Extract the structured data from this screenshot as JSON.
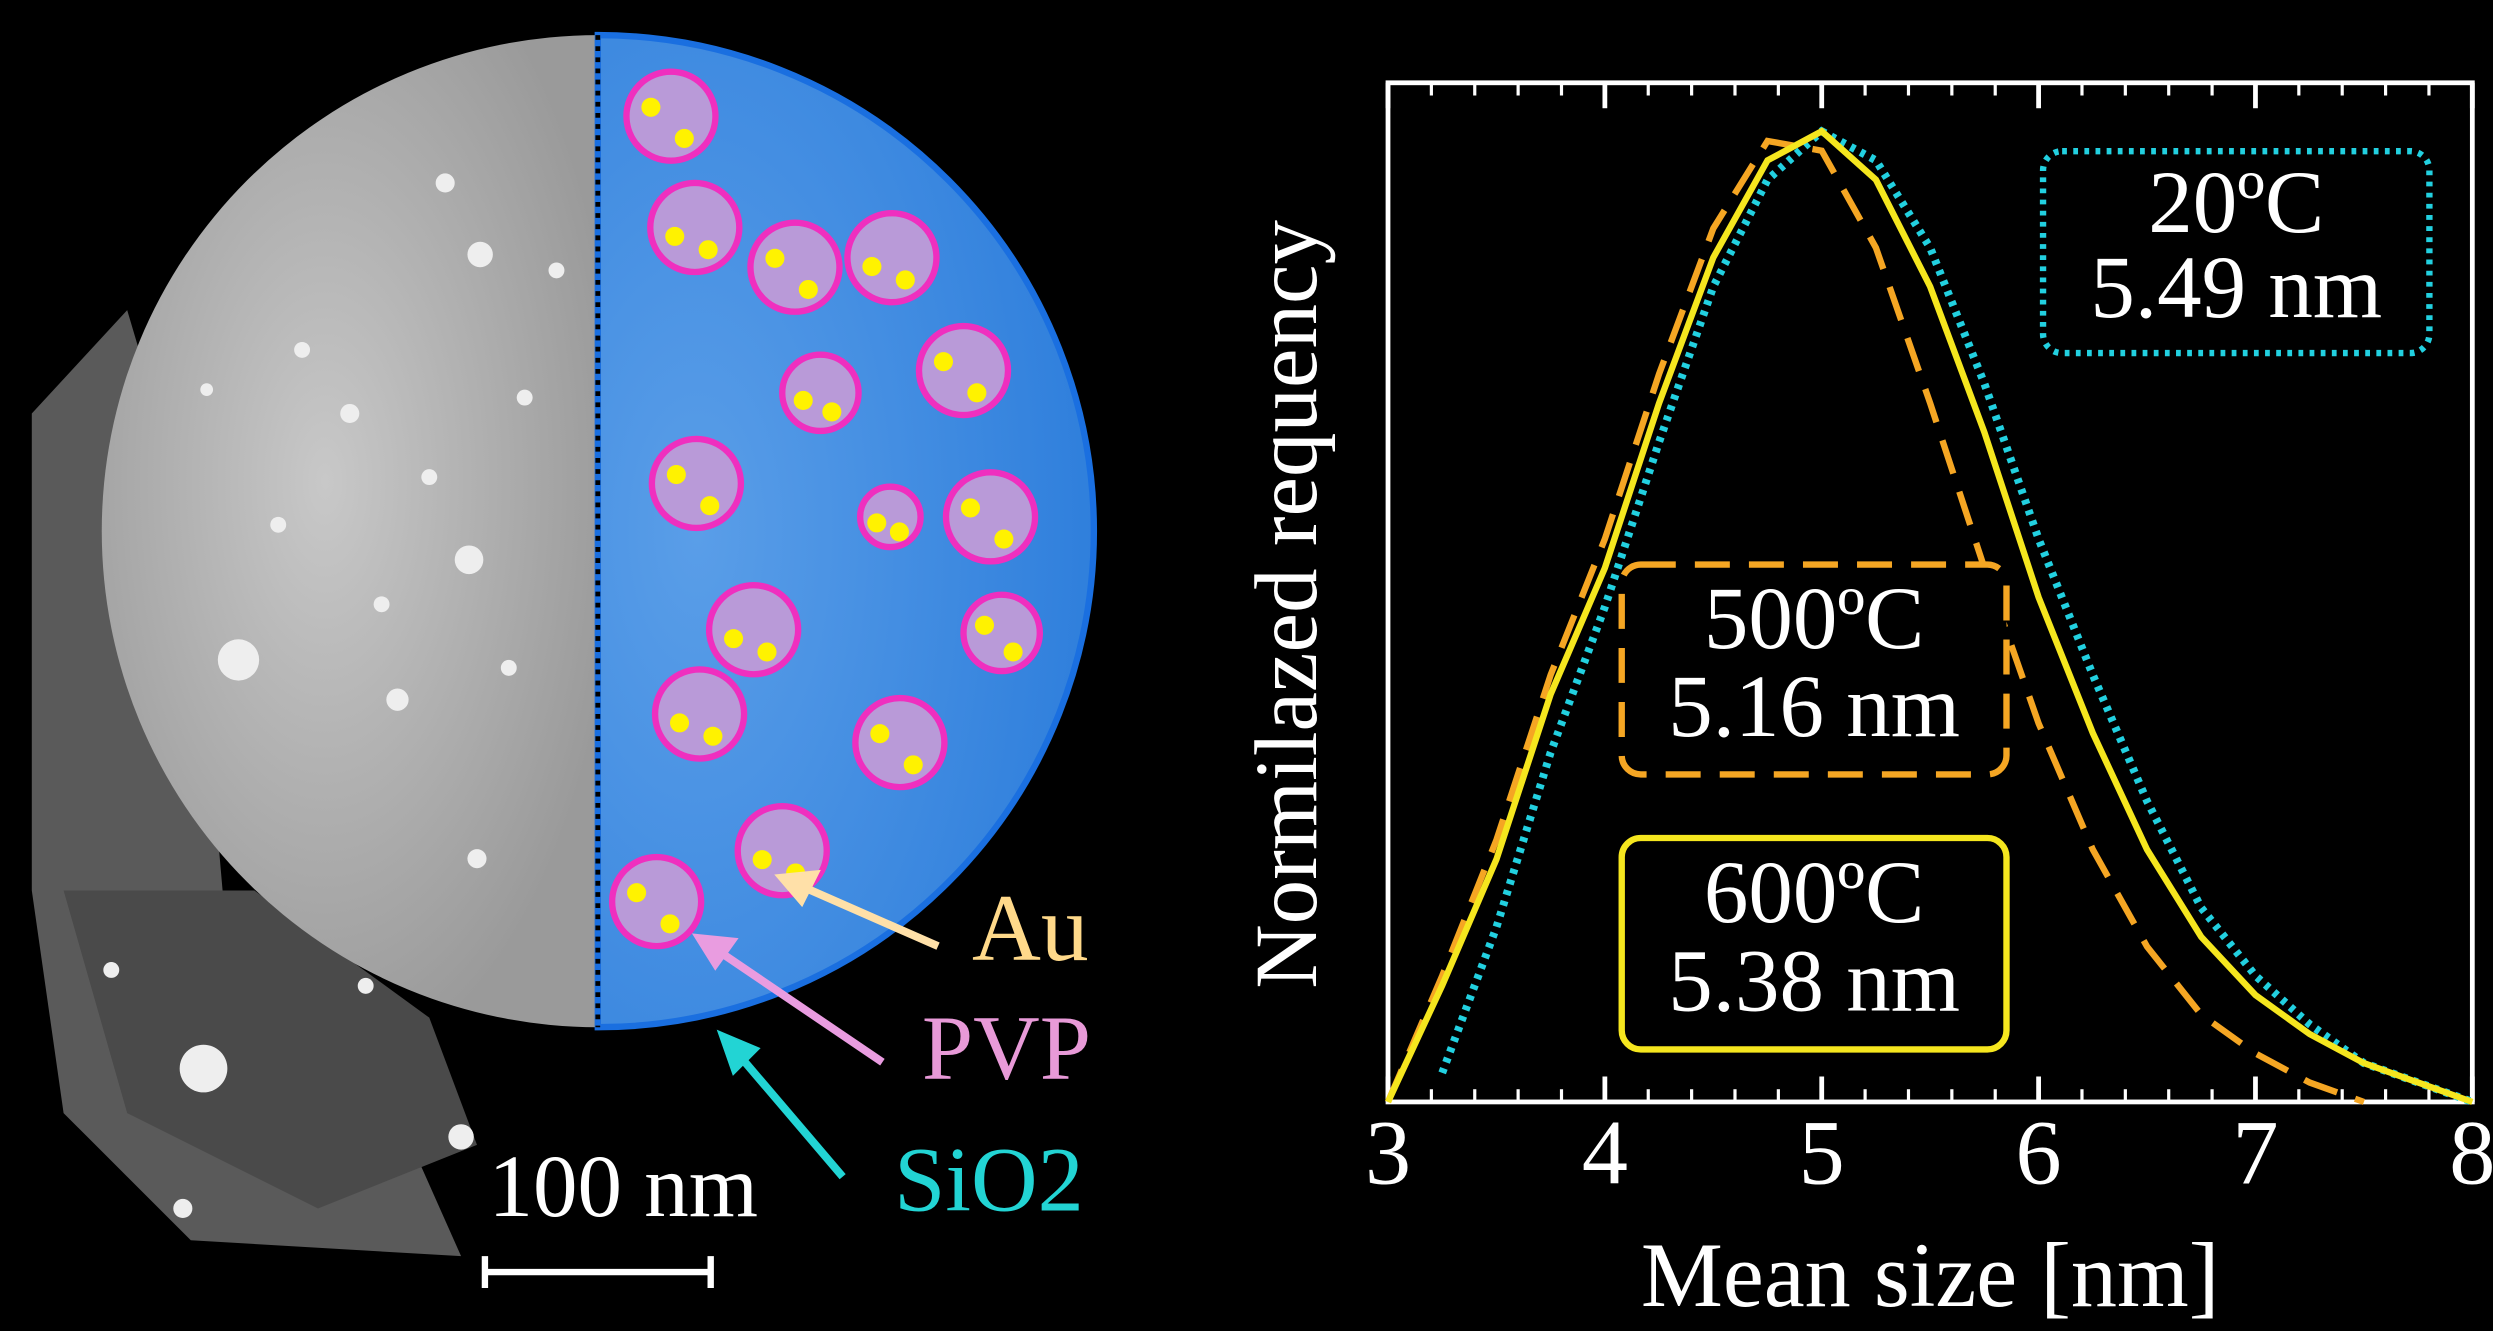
{
  "chart_data": {
    "type": "line",
    "x_label": "Mean size [nm]",
    "y_label": "Normilazed requency",
    "x": [
      3,
      3.25,
      3.5,
      3.75,
      4,
      4.25,
      4.5,
      4.75,
      5,
      5.25,
      5.5,
      5.75,
      6,
      6.25,
      6.5,
      6.75,
      7,
      7.25,
      7.5,
      7.75,
      8
    ],
    "series": [
      {
        "name": "20ºC",
        "annotation": "5.49 nm",
        "color": "#22d0e0",
        "dash": "dotted",
        "values": [
          null,
          0.03,
          0.18,
          0.36,
          0.51,
          0.68,
          0.84,
          0.95,
          1.0,
          0.97,
          0.88,
          0.74,
          0.58,
          0.44,
          0.31,
          0.2,
          0.13,
          0.08,
          0.04,
          0.02,
          0
        ]
      },
      {
        "name": "500ºC",
        "annotation": "5.16 nm",
        "color": "#f5a623",
        "dash": "dashed",
        "values": [
          0,
          0.13,
          0.27,
          0.44,
          0.58,
          0.75,
          0.9,
          0.99,
          0.98,
          0.88,
          0.72,
          0.55,
          0.39,
          0.26,
          0.16,
          0.09,
          0.05,
          0.02,
          0,
          null,
          null
        ]
      },
      {
        "name": "600ºC",
        "annotation": "5.38 nm",
        "color": "#f5e61e",
        "dash": "solid",
        "values": [
          0,
          0.12,
          0.25,
          0.42,
          0.55,
          0.72,
          0.87,
          0.97,
          1.0,
          0.95,
          0.84,
          0.69,
          0.52,
          0.38,
          0.26,
          0.17,
          0.11,
          0.07,
          0.04,
          0.02,
          0
        ]
      }
    ],
    "xlim": [
      3,
      8
    ],
    "xticks": [
      3,
      4,
      5,
      6,
      7,
      8
    ],
    "ylim": [
      0,
      1.05
    ]
  },
  "figure": {
    "labels": {
      "au": "Au",
      "pvp": "PVP",
      "sio2": "SiO2",
      "scale": "100 nm"
    }
  }
}
